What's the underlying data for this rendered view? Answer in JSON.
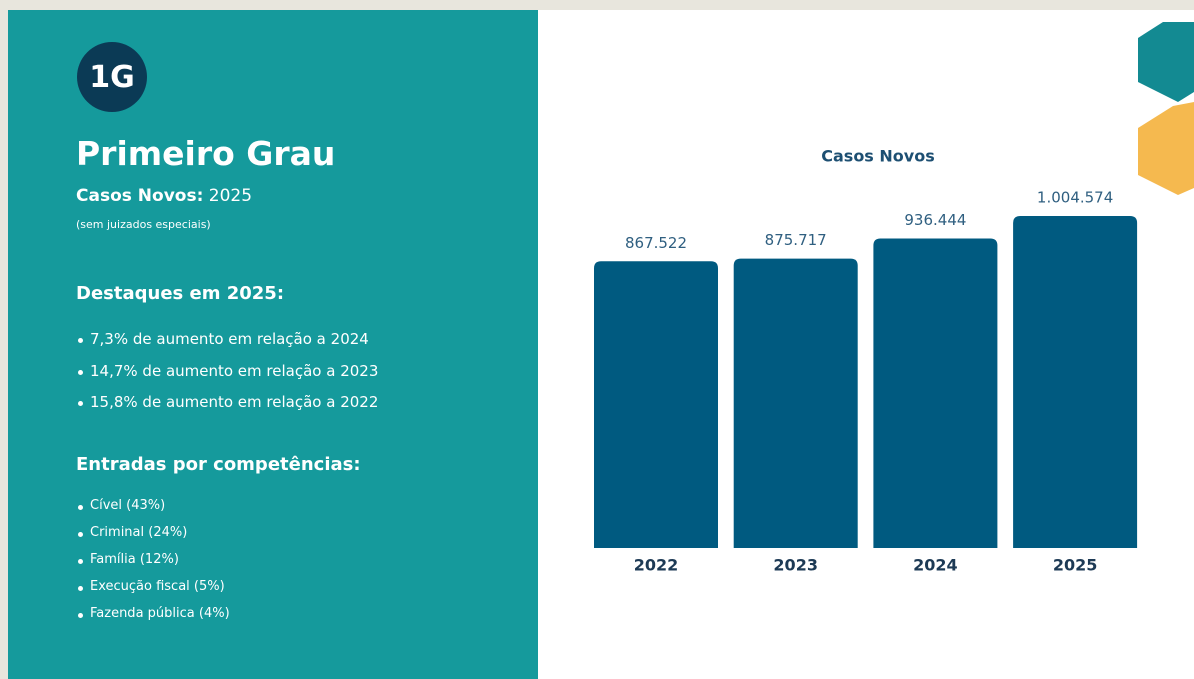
{
  "panel": {
    "badge": "1G",
    "title": "Primeiro Grau",
    "subtitle_label": "Casos Novos:",
    "subtitle_year": "2025",
    "note": "(sem juizados especiais)",
    "highlights_title": "Destaques em 2025:",
    "highlights": [
      "7,3% de aumento em relação a 2024",
      "14,7% de aumento em relação a 2023",
      "15,8% de aumento em relação a 2022"
    ],
    "entries_title": "Entradas por competências:",
    "entries": [
      "Cível (43%)",
      "Criminal (24%)",
      "Família (12%)",
      "Execução fiscal (5%)",
      "Fazenda pública (4%)"
    ]
  },
  "chart_data": {
    "type": "bar",
    "title": "Casos Novos",
    "categories": [
      "2022",
      "2023",
      "2024",
      "2025"
    ],
    "values": [
      867522,
      875717,
      936444,
      1004574
    ],
    "value_labels": [
      "867.522",
      "875.717",
      "936.444",
      "1.004.574"
    ],
    "color": "#005a80"
  }
}
